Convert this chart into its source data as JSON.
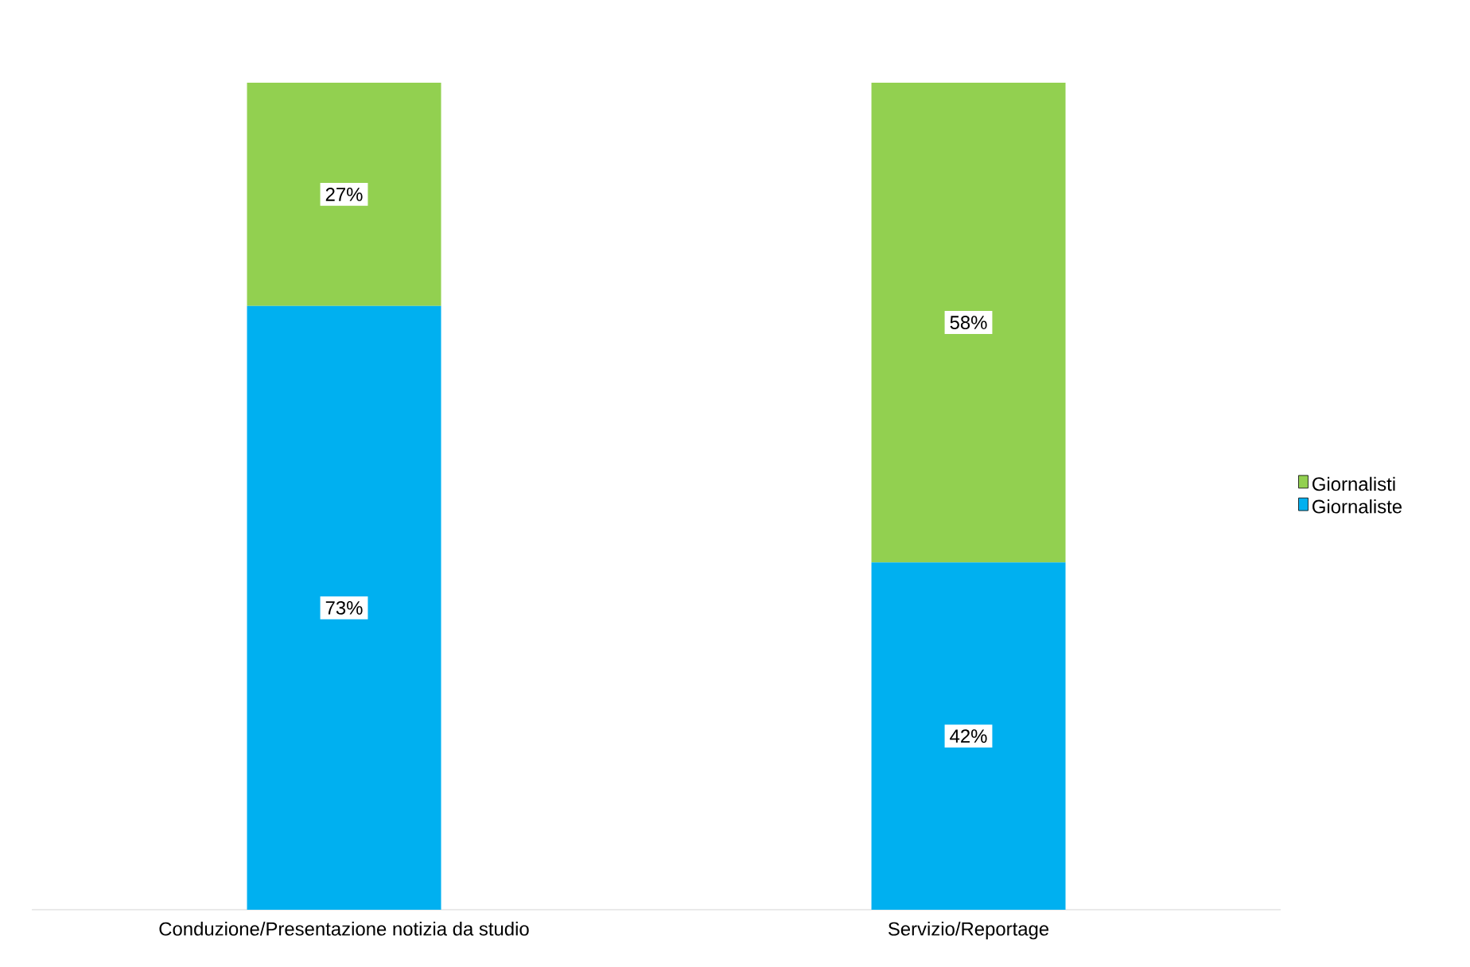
{
  "chart_data": {
    "type": "bar",
    "stacked": true,
    "categories": [
      "Conduzione/Presentazione notizia da studio",
      "Servizio/Reportage"
    ],
    "series": [
      {
        "name": "Giornaliste",
        "color": "#00b0f0",
        "values": [
          73,
          42
        ],
        "value_labels": [
          "73%",
          "42%"
        ]
      },
      {
        "name": "Giornalisti",
        "color": "#92d050",
        "values": [
          27,
          58
        ],
        "value_labels": [
          "27%",
          "58%"
        ]
      }
    ],
    "tick_labels": "x",
    "legend": "right"
  }
}
